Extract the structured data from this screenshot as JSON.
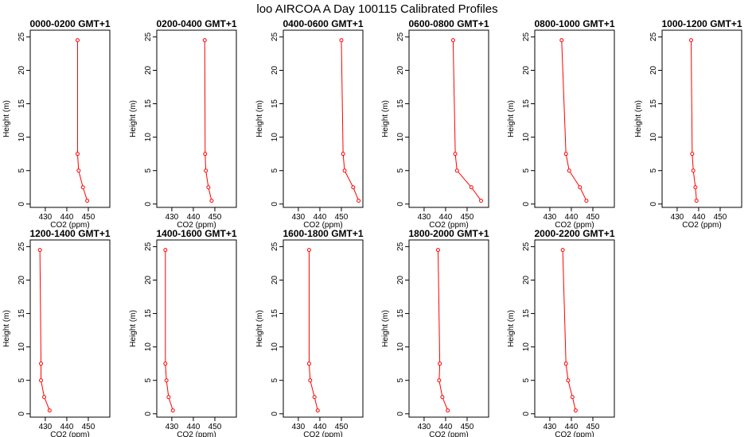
{
  "title": "loo AIRCOA A  Day 100115  Calibrated Profiles",
  "colors": {
    "line": "#ff0000",
    "frame": "#000000",
    "background": "#ffffff"
  },
  "chart_data": [
    {
      "type": "line",
      "title": "0000-0200 GMT+1",
      "xlabel": "CO2 (ppm)",
      "ylabel": "Height (m)",
      "xlim": [
        423,
        460
      ],
      "ylim": [
        -0.5,
        26
      ],
      "x_ticks": [
        430,
        440,
        450
      ],
      "y_ticks": [
        0,
        5,
        10,
        15,
        20,
        25
      ],
      "series": [
        {
          "x": [
            449.5,
            447.5,
            445.5,
            445,
            445
          ],
          "y": [
            0.5,
            2.5,
            5,
            7.5,
            24.5
          ]
        }
      ]
    },
    {
      "type": "line",
      "title": "0200-0400 GMT+1",
      "xlabel": "CO2 (ppm)",
      "ylabel": "Height (m)",
      "xlim": [
        423,
        460
      ],
      "ylim": [
        -0.5,
        26
      ],
      "x_ticks": [
        430,
        440,
        450
      ],
      "y_ticks": [
        0,
        5,
        10,
        15,
        20,
        25
      ],
      "series": [
        {
          "x": [
            448.5,
            447,
            445.8,
            445.5,
            445.3
          ],
          "y": [
            0.5,
            2.5,
            5,
            7.5,
            24.5
          ]
        }
      ]
    },
    {
      "type": "line",
      "title": "0400-0600 GMT+1",
      "xlabel": "CO2 (ppm)",
      "ylabel": "Height (m)",
      "xlim": [
        423,
        460
      ],
      "ylim": [
        -0.5,
        26
      ],
      "x_ticks": [
        430,
        440,
        450
      ],
      "y_ticks": [
        0,
        5,
        10,
        15,
        20,
        25
      ],
      "series": [
        {
          "x": [
            458,
            455.5,
            451.5,
            450.8,
            450
          ],
          "y": [
            0.5,
            2.5,
            5,
            7.5,
            24.5
          ]
        }
      ]
    },
    {
      "type": "line",
      "title": "0600-0800 GMT+1",
      "xlabel": "CO2 (ppm)",
      "ylabel": "Height (m)",
      "xlim": [
        423,
        460
      ],
      "ylim": [
        -0.5,
        26
      ],
      "x_ticks": [
        430,
        440,
        450
      ],
      "y_ticks": [
        0,
        5,
        10,
        15,
        20,
        25
      ],
      "series": [
        {
          "x": [
            456.5,
            452,
            445.3,
            444.5,
            443.5
          ],
          "y": [
            0.5,
            2.5,
            5,
            7.5,
            24.5
          ]
        }
      ]
    },
    {
      "type": "line",
      "title": "0800-1000 GMT+1",
      "xlabel": "CO2 (ppm)",
      "ylabel": "Height (m)",
      "xlim": [
        423,
        460
      ],
      "ylim": [
        -0.5,
        26
      ],
      "x_ticks": [
        430,
        440,
        450
      ],
      "y_ticks": [
        0,
        5,
        10,
        15,
        20,
        25
      ],
      "series": [
        {
          "x": [
            447,
            444,
            439,
            437.5,
            435.5
          ],
          "y": [
            0.5,
            2.5,
            5,
            7.5,
            24.5
          ]
        }
      ]
    },
    {
      "type": "line",
      "title": "1000-1200 GMT+1",
      "xlabel": "CO2 (ppm)",
      "ylabel": "Height (m)",
      "xlim": [
        423,
        460
      ],
      "ylim": [
        -0.5,
        26
      ],
      "x_ticks": [
        430,
        440,
        450
      ],
      "y_ticks": [
        0,
        5,
        10,
        15,
        20,
        25
      ],
      "series": [
        {
          "x": [
            439,
            438.5,
            437.5,
            437,
            436.5
          ],
          "y": [
            0.5,
            2.5,
            5,
            7.5,
            24.5
          ]
        }
      ]
    },
    {
      "type": "line",
      "title": "1200-1400 GMT+1",
      "xlabel": "CO2 (ppm)",
      "ylabel": "Height (m)",
      "xlim": [
        423,
        460
      ],
      "ylim": [
        -0.5,
        26
      ],
      "x_ticks": [
        430,
        440,
        450
      ],
      "y_ticks": [
        0,
        5,
        10,
        15,
        20,
        25
      ],
      "series": [
        {
          "x": [
            432,
            429.5,
            428,
            428,
            427.5
          ],
          "y": [
            0.5,
            2.5,
            5,
            7.5,
            24.5
          ]
        }
      ]
    },
    {
      "type": "line",
      "title": "1400-1600 GMT+1",
      "xlabel": "CO2 (ppm)",
      "ylabel": "Height (m)",
      "xlim": [
        423,
        460
      ],
      "ylim": [
        -0.5,
        26
      ],
      "x_ticks": [
        430,
        440,
        450
      ],
      "y_ticks": [
        0,
        5,
        10,
        15,
        20,
        25
      ],
      "series": [
        {
          "x": [
            430.5,
            428.5,
            427.5,
            427,
            427
          ],
          "y": [
            0.5,
            2.5,
            5,
            7.5,
            24.5
          ]
        }
      ]
    },
    {
      "type": "line",
      "title": "1600-1800 GMT+1",
      "xlabel": "CO2 (ppm)",
      "ylabel": "Height (m)",
      "xlim": [
        423,
        460
      ],
      "ylim": [
        -0.5,
        26
      ],
      "x_ticks": [
        430,
        440,
        450
      ],
      "y_ticks": [
        0,
        5,
        10,
        15,
        20,
        25
      ],
      "series": [
        {
          "x": [
            439,
            437.5,
            435.5,
            435,
            435
          ],
          "y": [
            0.5,
            2.5,
            5,
            7.5,
            24.5
          ]
        }
      ]
    },
    {
      "type": "line",
      "title": "1800-2000 GMT+1",
      "xlabel": "CO2 (ppm)",
      "ylabel": "Height (m)",
      "xlim": [
        423,
        460
      ],
      "ylim": [
        -0.5,
        26
      ],
      "x_ticks": [
        430,
        440,
        450
      ],
      "y_ticks": [
        0,
        5,
        10,
        15,
        20,
        25
      ],
      "series": [
        {
          "x": [
            441,
            438.5,
            437,
            437.3,
            436.5
          ],
          "y": [
            0.5,
            2.5,
            5,
            7.5,
            24.5
          ]
        }
      ]
    },
    {
      "type": "line",
      "title": "2000-2200 GMT+1",
      "xlabel": "CO2 (ppm)",
      "ylabel": "Height (m)",
      "xlim": [
        423,
        460
      ],
      "ylim": [
        -0.5,
        26
      ],
      "x_ticks": [
        430,
        440,
        450
      ],
      "y_ticks": [
        0,
        5,
        10,
        15,
        20,
        25
      ],
      "series": [
        {
          "x": [
            442,
            440.5,
            438.5,
            437.5,
            436
          ],
          "y": [
            0.5,
            2.5,
            5,
            7.5,
            24.5
          ]
        }
      ]
    }
  ]
}
